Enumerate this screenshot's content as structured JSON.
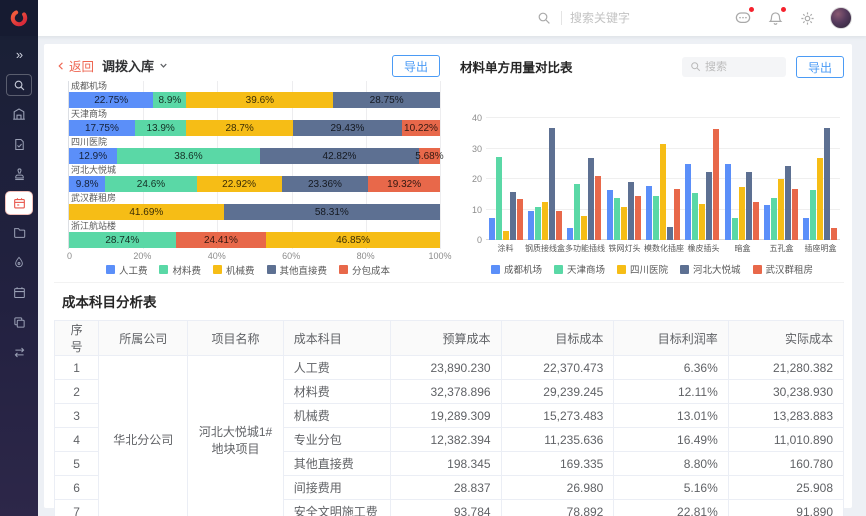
{
  "header": {
    "search_placeholder": "搜索关键字",
    "icons": [
      "search-icon",
      "message-icon",
      "bell-icon",
      "gear-icon",
      "avatar"
    ],
    "badge_color": "#f5222d"
  },
  "sidebar": {
    "items": [
      {
        "icon": "expand",
        "active": false
      },
      {
        "icon": "search",
        "active": false,
        "boxed": true
      },
      {
        "icon": "building",
        "active": false
      },
      {
        "icon": "document",
        "active": false
      },
      {
        "icon": "stamp",
        "active": false
      },
      {
        "icon": "cost-card",
        "active": true
      },
      {
        "icon": "folder",
        "active": false
      },
      {
        "icon": "drop",
        "active": false
      },
      {
        "icon": "calendar",
        "active": false
      },
      {
        "icon": "copy",
        "active": false
      },
      {
        "icon": "transfer",
        "active": false
      }
    ]
  },
  "left_panel": {
    "back_label": "返回",
    "title": "调拨入库",
    "export_label": "导出"
  },
  "right_panel": {
    "title": "材料单方用量对比表",
    "search_placeholder": "搜索",
    "export_label": "导出"
  },
  "colors": {
    "accent_blue": "#4b9bf5",
    "back_red": "#ee6652",
    "palette": [
      "#5B8FF9",
      "#5AD8A6",
      "#F6BD16",
      "#5D7092",
      "#E8684A"
    ]
  },
  "chart_data": [
    {
      "type": "bar",
      "variant": "horizontal-stacked-percent",
      "x_ticks": [
        "0",
        "20%",
        "40%",
        "60%",
        "80%",
        "100%"
      ],
      "legend": [
        "人工费",
        "材料费",
        "机械费",
        "其他直接费",
        "分包成本"
      ],
      "series_colors": {
        "人工费": "#5B8FF9",
        "材料费": "#5AD8A6",
        "机械费": "#F6BD16",
        "其他直接费": "#5D7092",
        "分包成本": "#E8684A"
      },
      "rows": [
        {
          "category": "成都机场",
          "segments": [
            [
              "人工费",
              22.75
            ],
            [
              "材料费",
              8.9
            ],
            [
              "机械费",
              39.6
            ],
            [
              "其他直接费",
              28.75
            ]
          ]
        },
        {
          "category": "天津商场",
          "segments": [
            [
              "人工费",
              17.75
            ],
            [
              "材料费",
              13.9
            ],
            [
              "机械费",
              28.7
            ],
            [
              "其他直接费",
              29.43
            ],
            [
              "分包成本",
              10.22
            ]
          ]
        },
        {
          "category": "四川医院",
          "segments": [
            [
              "人工费",
              12.9
            ],
            [
              "材料费",
              38.6
            ],
            [
              "其他直接费",
              42.82
            ],
            [
              "分包成本",
              5.68
            ]
          ]
        },
        {
          "category": "河北大悦城",
          "segments": [
            [
              "人工费",
              9.8
            ],
            [
              "材料费",
              24.6
            ],
            [
              "机械费",
              22.92
            ],
            [
              "其他直接费",
              23.36
            ],
            [
              "分包成本",
              19.32
            ]
          ]
        },
        {
          "category": "武汉群租房",
          "segments": [
            [
              "机械费",
              41.69
            ],
            [
              "其他直接费",
              58.31
            ]
          ]
        },
        {
          "category": "浙江航站楼",
          "segments": [
            [
              "材料费",
              28.74
            ],
            [
              "分包成本",
              24.41
            ],
            [
              "机械费",
              46.85
            ]
          ]
        }
      ]
    },
    {
      "type": "bar",
      "variant": "grouped-vertical",
      "title": "材料单方用量对比表",
      "categories": [
        "涂料",
        "钢质接线盒",
        "多功能插线",
        "铁网灯头",
        "模数化插座",
        "橡皮插头",
        "暗盒",
        "五孔盒",
        "插座明盒"
      ],
      "series": [
        {
          "name": "成都机场",
          "color": "#5B8FF9",
          "values": [
            7.5,
            9.5,
            4,
            16.5,
            18,
            25,
            25,
            11.5,
            7.5
          ]
        },
        {
          "name": "天津商场",
          "color": "#5AD8A6",
          "values": [
            27.5,
            11,
            18.5,
            14,
            14.5,
            15.5,
            7.5,
            14,
            16.5
          ]
        },
        {
          "name": "四川医院",
          "color": "#F6BD16",
          "values": [
            3,
            12.5,
            8,
            11,
            31.5,
            12,
            17.5,
            20,
            27
          ]
        },
        {
          "name": "河北大悦城",
          "color": "#5D7092",
          "values": [
            16,
            37,
            27,
            19,
            4.5,
            22.5,
            22.5,
            24.5,
            37
          ]
        },
        {
          "name": "武汉群租房",
          "color": "#E8684A",
          "values": [
            13.5,
            9.5,
            21,
            14.5,
            17,
            36.5,
            12.5,
            17,
            4
          ]
        }
      ],
      "ylim": [
        0,
        40
      ],
      "yticks": [
        0,
        10,
        20,
        30,
        40
      ],
      "grid": true,
      "legend_position": "bottom"
    }
  ],
  "table": {
    "title": "成本科目分析表",
    "columns": [
      "序号",
      "所属公司",
      "项目名称",
      "成本科目",
      "预算成本",
      "目标成本",
      "目标利润率",
      "实际成本"
    ],
    "company": "华北分公司",
    "project": "河北大悦城1#地块项目",
    "rows": [
      {
        "no": "1",
        "item": "人工费",
        "budget": "23,890.230",
        "target": "22,370.473",
        "margin": "6.36%",
        "actual": "21,280.382"
      },
      {
        "no": "2",
        "item": "材料费",
        "budget": "32,378.896",
        "target": "29,239.245",
        "margin": "12.11%",
        "actual": "30,238.930"
      },
      {
        "no": "3",
        "item": "机械费",
        "budget": "19,289.309",
        "target": "15,273.483",
        "margin": "13.01%",
        "actual": "13,283.883"
      },
      {
        "no": "4",
        "item": "专业分包",
        "budget": "12,382.394",
        "target": "11,235.636",
        "margin": "16.49%",
        "actual": "11,010.890"
      },
      {
        "no": "5",
        "item": "其他直接费",
        "budget": "198.345",
        "target": "169.335",
        "margin": "8.80%",
        "actual": "160.780"
      },
      {
        "no": "6",
        "item": "间接费用",
        "budget": "28.837",
        "target": "26.980",
        "margin": "5.16%",
        "actual": "25.908"
      },
      {
        "no": "7",
        "item": "安全文明施工费",
        "budget": "93.784",
        "target": "78.892",
        "margin": "22.81%",
        "actual": "91.890"
      }
    ]
  }
}
